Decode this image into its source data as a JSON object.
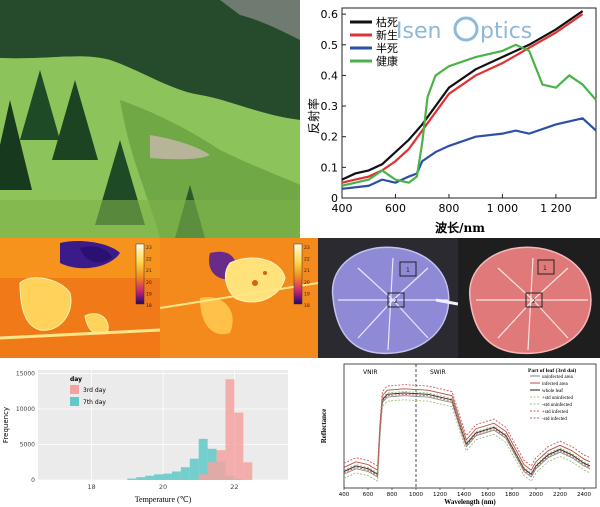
{
  "logo": {
    "part1": "Isen",
    "part2": "ptics"
  },
  "chart_data": [
    {
      "type": "line",
      "xlabel": "波长/nm",
      "ylabel": "反射率",
      "x_ticks": [
        "400",
        "600",
        "800",
        "1 000",
        "1 200"
      ],
      "y_ticks": [
        "0",
        "0.1",
        "0.2",
        "0.3",
        "0.4",
        "0.5",
        "0.6"
      ],
      "xlim": [
        400,
        1350
      ],
      "ylim": [
        0,
        0.62
      ],
      "legend_position": "top-left",
      "series": [
        {
          "name": "枯死",
          "color": "#111111",
          "x": [
            400,
            450,
            500,
            550,
            600,
            650,
            700,
            750,
            800,
            900,
            1000,
            1100,
            1200,
            1300
          ],
          "y": [
            0.06,
            0.08,
            0.09,
            0.11,
            0.15,
            0.19,
            0.24,
            0.3,
            0.36,
            0.42,
            0.46,
            0.5,
            0.55,
            0.61
          ]
        },
        {
          "name": "新生",
          "color": "#e03232",
          "x": [
            400,
            450,
            500,
            550,
            600,
            650,
            700,
            750,
            800,
            900,
            1000,
            1100,
            1200,
            1300
          ],
          "y": [
            0.05,
            0.06,
            0.07,
            0.09,
            0.12,
            0.16,
            0.22,
            0.28,
            0.34,
            0.4,
            0.44,
            0.49,
            0.54,
            0.6
          ]
        },
        {
          "name": "半死",
          "color": "#2d4fa8",
          "x": [
            400,
            500,
            550,
            600,
            650,
            680,
            700,
            750,
            800,
            900,
            1000,
            1050,
            1100,
            1200,
            1300,
            1350
          ],
          "y": [
            0.03,
            0.04,
            0.06,
            0.05,
            0.07,
            0.08,
            0.12,
            0.15,
            0.17,
            0.2,
            0.21,
            0.22,
            0.21,
            0.24,
            0.26,
            0.22
          ]
        },
        {
          "name": "健康",
          "color": "#49b349",
          "x": [
            400,
            450,
            500,
            550,
            600,
            650,
            680,
            700,
            720,
            750,
            800,
            900,
            1000,
            1050,
            1100,
            1150,
            1200,
            1250,
            1300,
            1350
          ],
          "y": [
            0.04,
            0.05,
            0.06,
            0.09,
            0.06,
            0.05,
            0.07,
            0.18,
            0.33,
            0.4,
            0.43,
            0.46,
            0.48,
            0.5,
            0.48,
            0.37,
            0.36,
            0.4,
            0.37,
            0.32
          ]
        }
      ]
    },
    {
      "type": "bar",
      "xlabel": "Temperature (℃)",
      "ylabel": "Frequency",
      "x_ticks": [
        "18",
        "20",
        "22"
      ],
      "y_ticks": [
        "0",
        "5000",
        "10000",
        "15000"
      ],
      "xlim": [
        16.5,
        23.5
      ],
      "ylim": [
        0,
        15500
      ],
      "legend_title": "day",
      "legend_position": "top-left",
      "bin_width": 0.25,
      "series": [
        {
          "name": "3rd day",
          "color": "#f4a3a0",
          "bins": [
            21.0,
            21.25,
            21.5,
            21.75,
            22.0,
            22.25
          ],
          "values": [
            800,
            2500,
            4200,
            14200,
            9500,
            2500
          ]
        },
        {
          "name": "7th day",
          "color": "#5ec9c8",
          "bins": [
            19.0,
            19.25,
            19.5,
            19.75,
            20.0,
            20.25,
            20.5,
            20.75,
            21.0,
            21.25,
            21.5,
            21.75,
            22.0
          ],
          "values": [
            200,
            400,
            600,
            800,
            900,
            1200,
            1800,
            3000,
            5800,
            4400,
            2600,
            600,
            100
          ]
        }
      ]
    },
    {
      "type": "line",
      "xlabel": "Wavelength (nm)",
      "ylabel": "Reflectance",
      "x_ticks": [
        "400",
        "600",
        "800",
        "1000",
        "1200",
        "1400",
        "1600",
        "1800",
        "2000",
        "2200",
        "2400"
      ],
      "xlim": [
        400,
        2500
      ],
      "region_labels": [
        "VNIR",
        "SWIR"
      ],
      "legend_title": "Part of leaf (3rd dai)",
      "legend_position": "top-right",
      "series": [
        {
          "name": "uninfected area",
          "color": "#8a8a8a",
          "offset": 0.0
        },
        {
          "name": "infected area",
          "color": "#c34a4a",
          "offset": 0.05
        },
        {
          "name": "whole leaf",
          "color": "#222222",
          "offset": 0.02
        },
        {
          "name": "+std uninfected",
          "color": "#9fc07a",
          "offset": 0.03
        },
        {
          "name": "-std uninfected",
          "color": "#9fc07a",
          "offset": -0.03
        },
        {
          "name": "+std infected",
          "color": "#c95a5a",
          "offset": 0.08
        },
        {
          "name": "-std infected",
          "color": "#c95a5a",
          "offset": 0.01
        }
      ],
      "base_x": [
        400,
        500,
        600,
        680,
        700,
        720,
        760,
        900,
        1100,
        1300,
        1380,
        1420,
        1500,
        1650,
        1750,
        1850,
        1900,
        1960,
        2000,
        2100,
        2200,
        2300,
        2400,
        2450
      ],
      "base_y": [
        0.1,
        0.14,
        0.12,
        0.08,
        0.4,
        0.62,
        0.66,
        0.67,
        0.66,
        0.62,
        0.4,
        0.3,
        0.38,
        0.42,
        0.36,
        0.2,
        0.12,
        0.08,
        0.14,
        0.22,
        0.26,
        0.22,
        0.16,
        0.14
      ]
    }
  ],
  "thermal_scale": {
    "ticks": [
      "23",
      "22",
      "21",
      "20",
      "19",
      "18"
    ]
  },
  "leaf_boxes": {
    "purple": [
      "1",
      "2"
    ],
    "red": [
      "1",
      "2"
    ]
  },
  "colors": {
    "legend_bg": "#ffffff",
    "sky": "#cfe3f5",
    "grass": "#7fb24a",
    "hist_bg": "#ebebeb"
  }
}
